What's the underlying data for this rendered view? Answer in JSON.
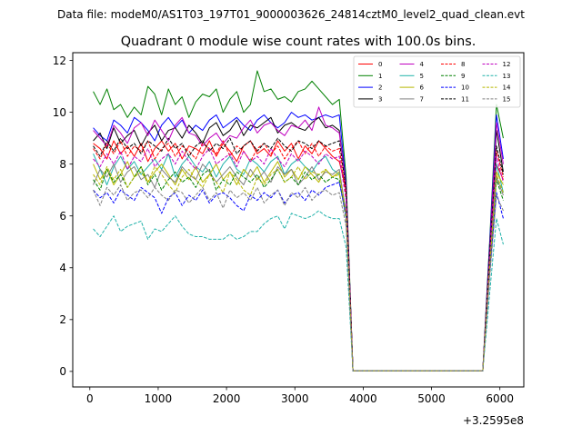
{
  "figure": {
    "suptitle": "Data file: modeM0/AS1T03_197T01_9000003626_24814cztM0_level2_quad_clean.evt"
  },
  "chart_data": {
    "type": "line",
    "title": "Quadrant 0 module wise count rates with 100.0s bins.",
    "xlabel": "",
    "ylabel": "",
    "x_offset_label": "+3.2595e8",
    "xlim": [
      -250,
      6350
    ],
    "ylim": [
      -0.6,
      12.3
    ],
    "xticks": [
      0,
      1000,
      2000,
      3000,
      4000,
      5000,
      6000
    ],
    "xtick_labels": [
      "0",
      "1000",
      "2000",
      "3000",
      "4000",
      "5000",
      "6000"
    ],
    "yticks": [
      0,
      2,
      4,
      6,
      8,
      10,
      12
    ],
    "ytick_labels": [
      "0",
      "2",
      "4",
      "6",
      "8",
      "10",
      "12"
    ],
    "legend": {
      "location": "top-right",
      "columns": 4
    },
    "x": [
      50,
      150,
      250,
      350,
      450,
      550,
      650,
      750,
      850,
      950,
      1050,
      1150,
      1250,
      1350,
      1450,
      1550,
      1650,
      1750,
      1850,
      1950,
      2050,
      2150,
      2250,
      2350,
      2450,
      2550,
      2650,
      2750,
      2850,
      2950,
      3050,
      3150,
      3250,
      3350,
      3450,
      3550,
      3650,
      3750,
      3850,
      5750,
      5850,
      5950,
      6050
    ],
    "series": [
      {
        "name": "0",
        "color": "#ff0000",
        "dash": "solid",
        "values": [
          8.8,
          8.6,
          8.2,
          8.9,
          8.4,
          8.7,
          8.3,
          8.8,
          8.1,
          8.6,
          8.9,
          8.5,
          8.8,
          8.2,
          8.7,
          8.6,
          8.4,
          8.9,
          8.3,
          8.8,
          8.5,
          8.1,
          8.7,
          8.9,
          8.4,
          8.6,
          8.3,
          8.9,
          8.5,
          8.8,
          8.2,
          8.7,
          8.4,
          8.9,
          8.6,
          8.3,
          8.1,
          7.0,
          0.02,
          0.02,
          4.5,
          8.0,
          7.4
        ]
      },
      {
        "name": "1",
        "color": "#008000",
        "dash": "solid",
        "values": [
          10.8,
          10.3,
          10.9,
          10.1,
          10.3,
          9.8,
          10.2,
          9.9,
          11.0,
          10.7,
          9.9,
          10.9,
          10.3,
          10.6,
          9.8,
          10.4,
          10.7,
          10.6,
          10.9,
          10.0,
          10.5,
          10.8,
          10.0,
          10.3,
          11.6,
          10.8,
          10.9,
          10.5,
          10.6,
          10.4,
          10.8,
          10.9,
          11.2,
          10.9,
          10.6,
          10.3,
          10.5,
          7.5,
          0.02,
          0.02,
          5.0,
          10.3,
          9.0
        ]
      },
      {
        "name": "2",
        "color": "#0000ff",
        "dash": "solid",
        "values": [
          9.4,
          9.1,
          8.9,
          9.7,
          9.5,
          9.2,
          9.8,
          9.6,
          9.3,
          8.9,
          9.5,
          9.8,
          9.4,
          9.7,
          9.2,
          9.5,
          9.3,
          9.7,
          9.9,
          9.4,
          9.6,
          9.8,
          9.5,
          9.3,
          9.7,
          9.9,
          9.6,
          9.4,
          9.6,
          10.0,
          9.8,
          9.9,
          9.7,
          9.8,
          9.9,
          9.8,
          9.9,
          7.2,
          0.02,
          0.02,
          4.9,
          9.9,
          8.2
        ]
      },
      {
        "name": "3",
        "color": "#000000",
        "dash": "solid",
        "values": [
          8.9,
          9.2,
          8.6,
          9.4,
          8.8,
          9.1,
          9.3,
          8.7,
          9.2,
          9.5,
          8.9,
          9.3,
          9.4,
          9.0,
          9.5,
          9.2,
          8.8,
          9.4,
          9.6,
          9.1,
          9.3,
          9.7,
          9.1,
          9.5,
          9.4,
          9.6,
          9.8,
          9.2,
          9.5,
          9.6,
          9.4,
          9.3,
          9.6,
          9.8,
          9.4,
          9.5,
          9.3,
          7.1,
          0.02,
          0.02,
          4.7,
          9.3,
          7.7
        ]
      },
      {
        "name": "4",
        "color": "#c000c0",
        "dash": "solid",
        "values": [
          9.3,
          9.0,
          8.7,
          9.5,
          9.2,
          8.8,
          9.4,
          9.6,
          9.1,
          9.7,
          9.3,
          8.9,
          9.5,
          9.8,
          9.2,
          9.1,
          8.7,
          9.0,
          9.2,
          8.8,
          9.1,
          9.0,
          9.4,
          9.7,
          9.2,
          9.5,
          9.6,
          9.3,
          9.1,
          9.5,
          9.4,
          9.7,
          9.3,
          10.2,
          9.5,
          9.4,
          9.2,
          7.1,
          0.02,
          0.02,
          4.6,
          9.6,
          8.0
        ]
      },
      {
        "name": "5",
        "color": "#20b2aa",
        "dash": "solid",
        "values": [
          8.4,
          7.8,
          7.2,
          7.9,
          8.3,
          7.8,
          8.1,
          7.6,
          7.9,
          8.2,
          7.8,
          8.4,
          7.5,
          8.0,
          8.3,
          7.9,
          7.7,
          8.1,
          7.5,
          8.0,
          8.3,
          7.8,
          7.6,
          8.2,
          8.0,
          7.7,
          8.1,
          8.3,
          7.6,
          8.0,
          8.2,
          7.9,
          7.7,
          8.1,
          8.3,
          7.8,
          7.6,
          6.2,
          0.02,
          0.02,
          4.2,
          8.0,
          6.9
        ]
      },
      {
        "name": "6",
        "color": "#b8b800",
        "dash": "solid",
        "values": [
          8.0,
          7.4,
          7.8,
          7.2,
          7.6,
          8.1,
          7.5,
          7.9,
          7.3,
          7.7,
          8.0,
          7.6,
          7.2,
          7.8,
          7.4,
          7.9,
          7.3,
          7.6,
          8.0,
          7.4,
          7.7,
          7.2,
          7.8,
          7.5,
          7.9,
          7.3,
          7.7,
          8.1,
          7.5,
          7.8,
          7.4,
          7.9,
          7.6,
          7.3,
          7.8,
          7.5,
          7.7,
          6.0,
          0.02,
          0.02,
          4.1,
          7.7,
          7.2
        ]
      },
      {
        "name": "7",
        "color": "#808080",
        "dash": "solid",
        "values": [
          7.2,
          7.8,
          7.5,
          8.0,
          7.3,
          7.7,
          7.9,
          7.4,
          7.6,
          7.1,
          7.8,
          7.5,
          7.3,
          7.9,
          7.6,
          7.4,
          8.0,
          7.7,
          7.3,
          7.6,
          7.9,
          7.5,
          7.2,
          7.8,
          7.4,
          7.7,
          7.3,
          7.9,
          7.6,
          7.8,
          7.2,
          7.5,
          7.9,
          7.4,
          7.7,
          7.6,
          7.8,
          6.1,
          0.02,
          0.02,
          4.0,
          7.5,
          6.8
        ]
      },
      {
        "name": "8",
        "color": "#ff0000",
        "dash": "dashed",
        "values": [
          8.6,
          8.2,
          8.8,
          8.4,
          8.9,
          8.3,
          8.7,
          8.5,
          8.9,
          8.2,
          8.6,
          8.8,
          8.3,
          8.7,
          8.5,
          8.2,
          8.8,
          8.6,
          8.4,
          8.9,
          8.3,
          8.7,
          8.5,
          8.1,
          8.6,
          8.8,
          8.4,
          8.7,
          8.2,
          8.6,
          8.9,
          8.4,
          8.8,
          8.3,
          8.7,
          8.5,
          8.6,
          6.8,
          0.02,
          0.02,
          4.4,
          8.5,
          7.5
        ]
      },
      {
        "name": "9",
        "color": "#008000",
        "dash": "dashed",
        "values": [
          7.4,
          7.0,
          7.8,
          7.3,
          7.6,
          7.1,
          7.5,
          7.9,
          7.2,
          7.6,
          7.0,
          7.4,
          7.7,
          7.3,
          7.5,
          7.1,
          7.6,
          7.8,
          7.0,
          7.4,
          7.2,
          7.7,
          7.5,
          7.3,
          7.6,
          7.1,
          7.4,
          7.8,
          7.3,
          7.5,
          7.2,
          7.7,
          7.4,
          7.6,
          7.3,
          7.5,
          7.4,
          5.9,
          0.02,
          0.02,
          3.9,
          7.4,
          6.6
        ]
      },
      {
        "name": "10",
        "color": "#0000ff",
        "dash": "dashed",
        "values": [
          7.0,
          6.7,
          6.9,
          6.5,
          7.0,
          6.8,
          6.6,
          7.1,
          6.9,
          6.7,
          6.1,
          6.7,
          6.9,
          6.4,
          6.8,
          6.6,
          7.0,
          6.5,
          6.8,
          6.9,
          6.7,
          6.4,
          6.2,
          6.8,
          6.6,
          6.9,
          6.7,
          7.0,
          6.5,
          6.8,
          6.9,
          6.6,
          7.0,
          6.8,
          7.1,
          7.2,
          7.3,
          6.0,
          0.02,
          0.02,
          3.8,
          6.9,
          5.9
        ]
      },
      {
        "name": "11",
        "color": "#000000",
        "dash": "dashed",
        "values": [
          8.7,
          8.3,
          8.9,
          8.5,
          9.0,
          8.6,
          8.8,
          8.4,
          8.9,
          8.7,
          8.5,
          9.0,
          8.6,
          8.8,
          8.3,
          8.7,
          8.9,
          8.5,
          8.8,
          8.6,
          9.0,
          8.4,
          8.7,
          8.9,
          8.5,
          8.8,
          8.6,
          9.0,
          8.7,
          8.5,
          8.9,
          8.8,
          8.6,
          8.9,
          8.7,
          8.8,
          8.9,
          7.0,
          0.02,
          0.02,
          4.5,
          8.7,
          7.6
        ]
      },
      {
        "name": "12",
        "color": "#c000c0",
        "dash": "dashed",
        "values": [
          8.2,
          7.9,
          8.4,
          8.0,
          8.5,
          7.8,
          8.3,
          8.1,
          8.6,
          7.9,
          8.2,
          8.4,
          8.0,
          8.5,
          8.1,
          7.8,
          8.3,
          8.6,
          8.0,
          8.2,
          8.4,
          7.9,
          8.5,
          8.1,
          8.3,
          8.0,
          8.6,
          8.2,
          7.9,
          8.4,
          8.1,
          8.5,
          8.3,
          8.0,
          8.4,
          8.2,
          8.3,
          6.6,
          0.02,
          0.02,
          4.3,
          8.3,
          7.3
        ]
      },
      {
        "name": "13",
        "color": "#20b2aa",
        "dash": "dashed",
        "values": [
          5.5,
          5.2,
          5.6,
          6.0,
          5.4,
          5.6,
          5.7,
          5.8,
          5.1,
          5.5,
          5.4,
          5.7,
          6.0,
          5.6,
          5.3,
          5.2,
          5.2,
          5.1,
          5.1,
          5.1,
          5.3,
          5.1,
          5.2,
          5.4,
          5.4,
          5.7,
          5.9,
          6.0,
          5.5,
          6.1,
          6.0,
          5.9,
          6.0,
          6.2,
          6.0,
          5.9,
          5.9,
          4.8,
          0.02,
          0.02,
          3.0,
          5.9,
          4.9
        ]
      },
      {
        "name": "14",
        "color": "#b8b800",
        "dash": "dashed",
        "values": [
          7.6,
          7.2,
          7.9,
          7.4,
          7.8,
          7.1,
          7.5,
          7.7,
          7.3,
          7.9,
          7.6,
          7.2,
          6.9,
          7.5,
          7.8,
          7.4,
          7.1,
          7.6,
          7.3,
          6.9,
          7.7,
          7.4,
          7.0,
          6.8,
          7.5,
          7.2,
          7.6,
          7.8,
          7.3,
          7.5,
          7.9,
          7.4,
          7.7,
          7.6,
          7.8,
          7.5,
          7.6,
          6.1,
          0.02,
          0.02,
          4.0,
          7.6,
          6.9
        ]
      },
      {
        "name": "15",
        "color": "#808080",
        "dash": "dashed",
        "values": [
          7.0,
          6.4,
          7.1,
          6.8,
          7.2,
          6.6,
          6.9,
          7.0,
          6.7,
          7.1,
          6.8,
          6.6,
          7.0,
          6.9,
          6.5,
          6.8,
          7.1,
          6.6,
          6.9,
          6.3,
          7.0,
          6.7,
          6.9,
          6.6,
          7.1,
          6.5,
          6.8,
          7.0,
          6.4,
          6.9,
          6.7,
          7.1,
          6.6,
          6.9,
          7.0,
          6.8,
          6.9,
          5.6,
          0.02,
          0.02,
          3.6,
          6.8,
          6.2
        ]
      }
    ]
  }
}
